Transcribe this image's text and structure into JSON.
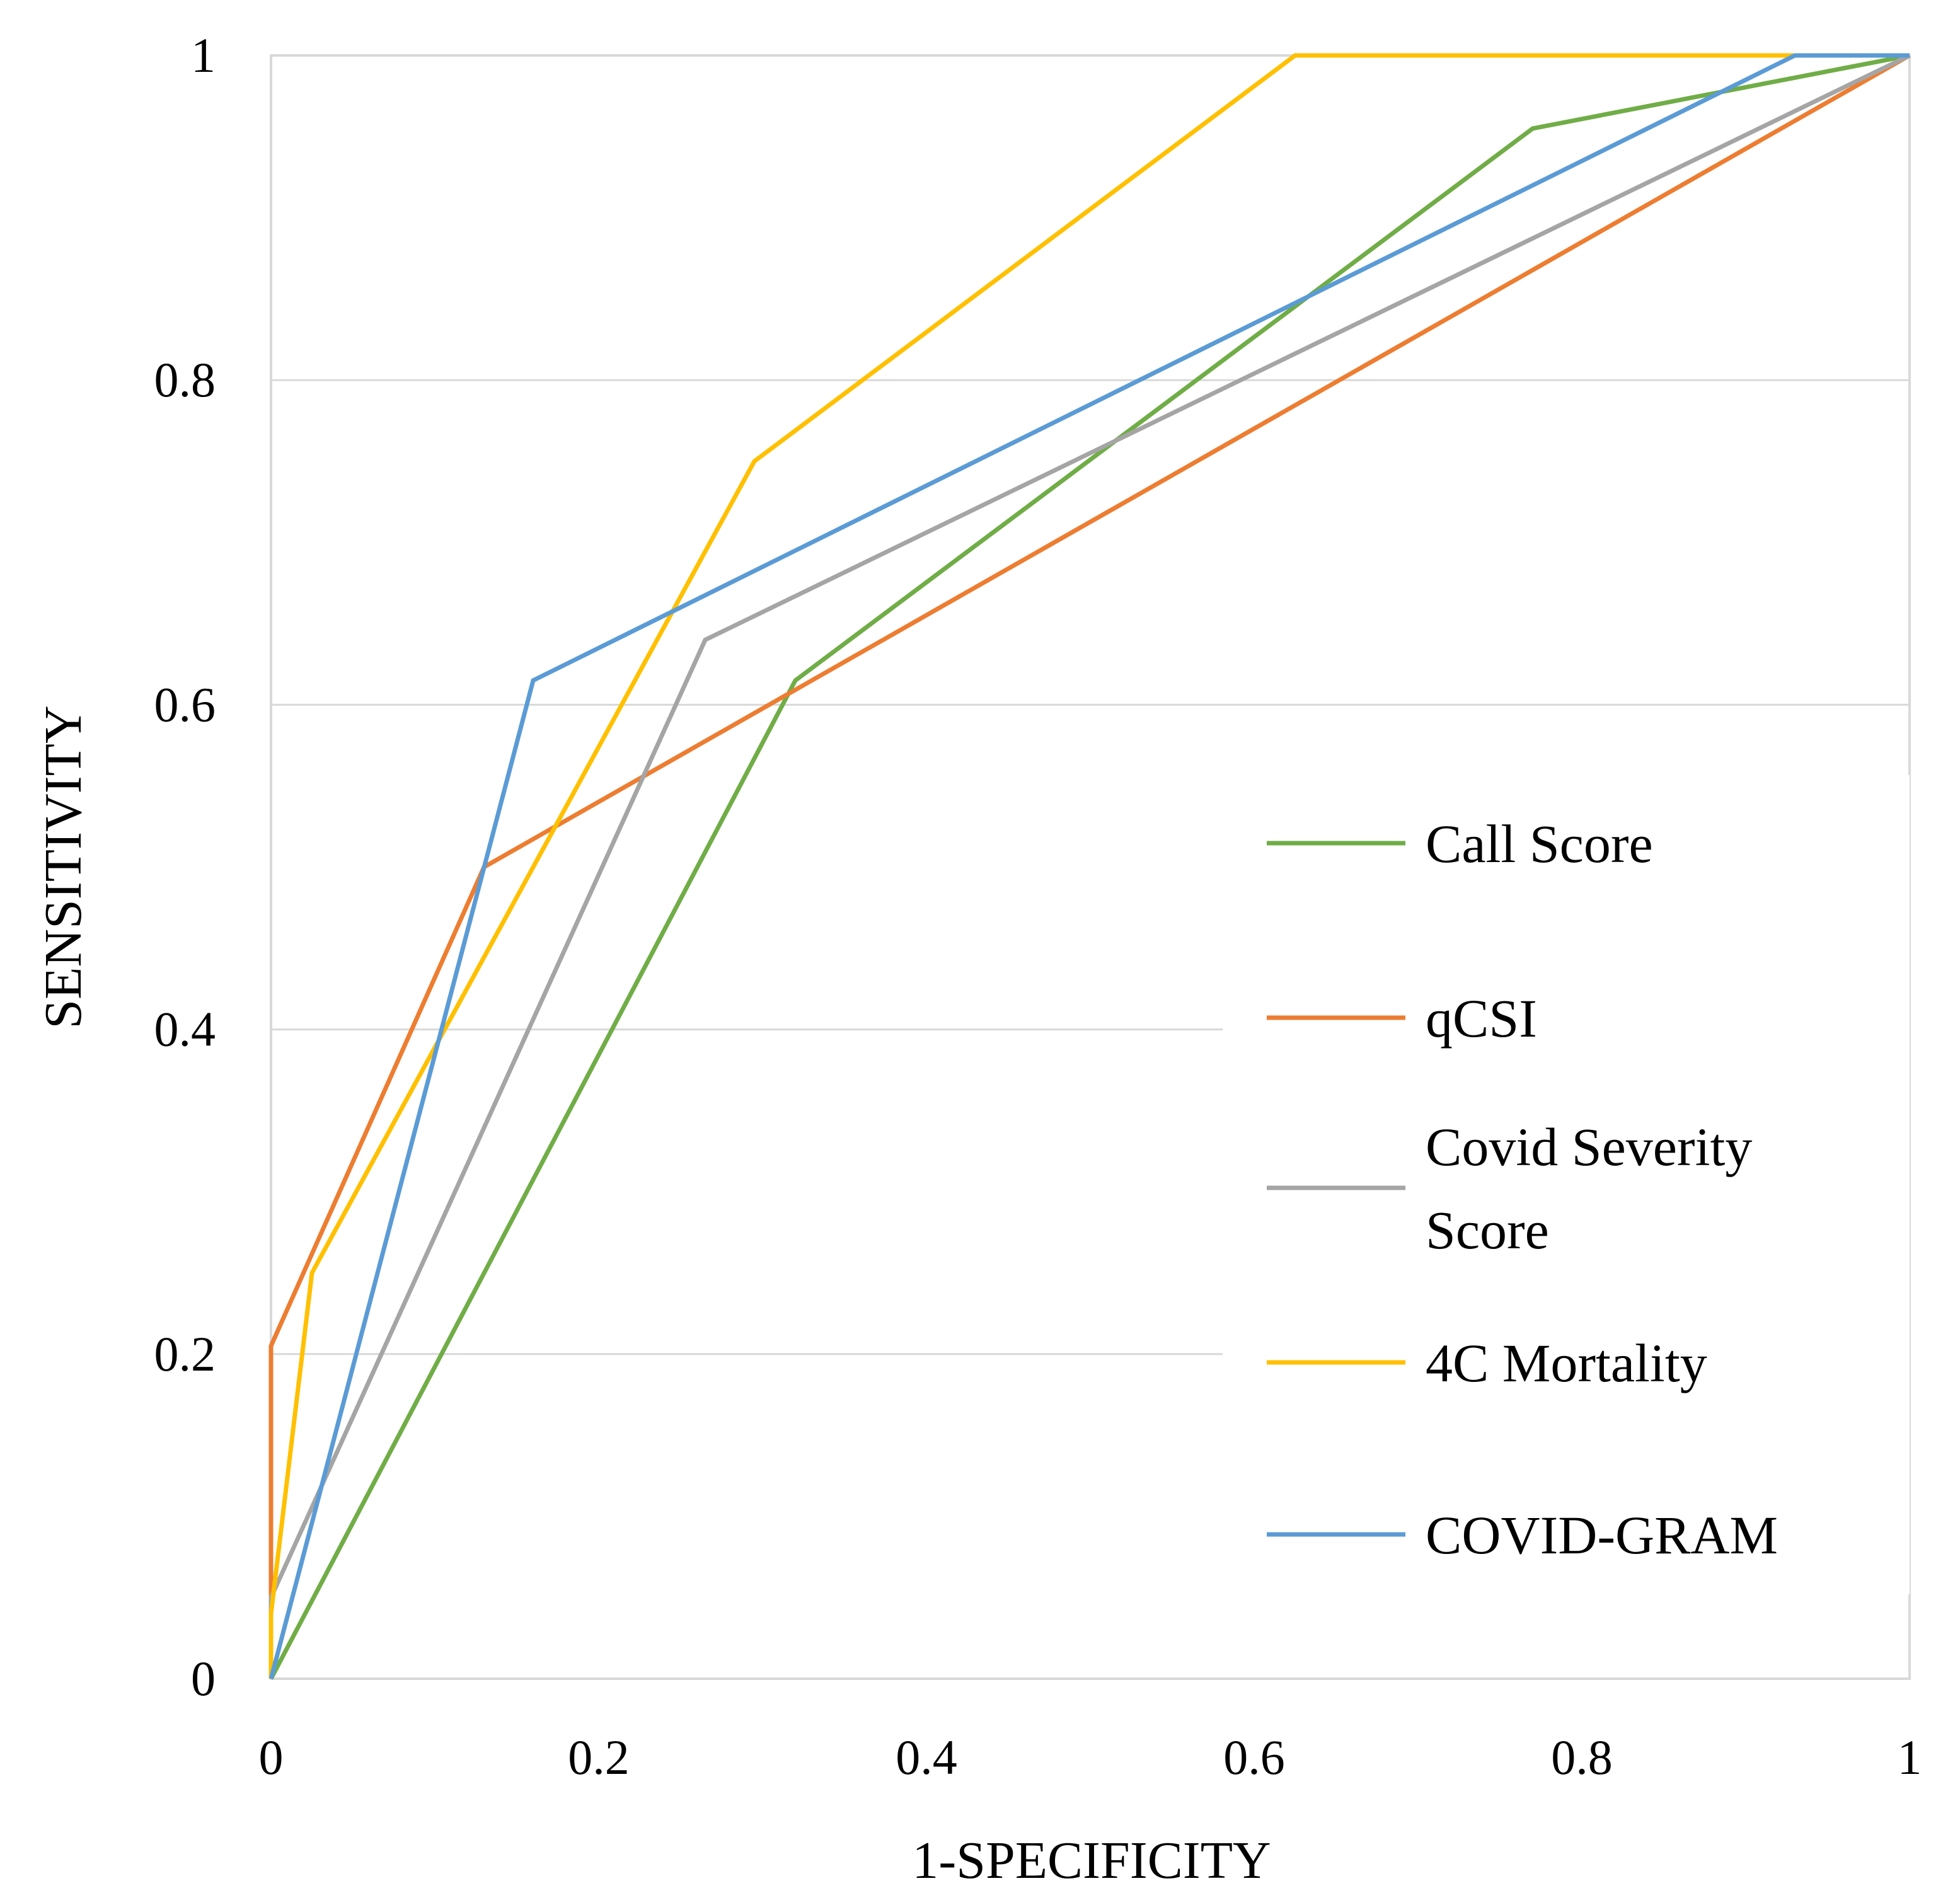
{
  "chart_data": {
    "type": "line",
    "title": "",
    "xlabel": "1-SPECIFICITY",
    "ylabel": "SENSITIVITY",
    "xlim": [
      0,
      1
    ],
    "ylim": [
      0,
      1
    ],
    "grid": true,
    "legend_position": "right",
    "x_ticks": [
      "0",
      "0.2",
      "0.4",
      "0.6",
      "0.8",
      "1"
    ],
    "y_ticks": [
      "0",
      "0.2",
      "0.4",
      "0.6",
      "0.8",
      "1"
    ],
    "series": [
      {
        "name": "Call Score",
        "legend_lines": [
          "Call Score"
        ],
        "color": "#70ad47",
        "x": [
          0,
          0.32,
          0.77,
          1
        ],
        "y": [
          0,
          0.615,
          0.955,
          1
        ]
      },
      {
        "name": "qCSI",
        "legend_lines": [
          "qCSI"
        ],
        "color": "#ed7d31",
        "x": [
          0,
          0,
          0.13,
          1
        ],
        "y": [
          0,
          0.205,
          0.5,
          1
        ]
      },
      {
        "name": "Covid Severity Score",
        "legend_lines": [
          "Covid Severity",
          "Score"
        ],
        "color": "#a5a5a5",
        "x": [
          0,
          0,
          0.265,
          1
        ],
        "y": [
          0,
          0.05,
          0.64,
          1
        ]
      },
      {
        "name": "4C Mortality",
        "legend_lines": [
          "4C Mortality"
        ],
        "color": "#ffc000",
        "x": [
          0,
          0,
          0.025,
          0.295,
          0.625,
          1
        ],
        "y": [
          0,
          0.04,
          0.25,
          0.75,
          1,
          1
        ]
      },
      {
        "name": "COVID-GRAM",
        "legend_lines": [
          "COVID-GRAM"
        ],
        "color": "#5b9bd5",
        "x": [
          0,
          0.16,
          0.93,
          1
        ],
        "y": [
          0,
          0.615,
          1,
          1
        ]
      }
    ]
  }
}
